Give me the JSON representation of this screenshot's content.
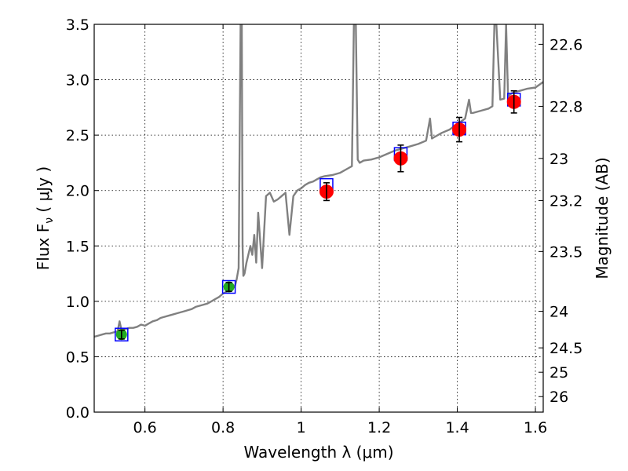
{
  "chart_data": {
    "type": "scatter",
    "xlabel": "Wavelength  λ (μm)",
    "ylabel_prefix": "Flux  F",
    "ylabel_sub": "ν",
    "ylabel_suffix": "  ( μJy )",
    "y2label": "Magnitude (AB)",
    "xlim": [
      0.47,
      1.62
    ],
    "ylim": [
      0.0,
      3.5
    ],
    "grid": true,
    "x_ticks": [
      {
        "value": 0.6,
        "label": "0.6"
      },
      {
        "value": 0.8,
        "label": "0.8"
      },
      {
        "value": 1.0,
        "label": "1"
      },
      {
        "value": 1.2,
        "label": "1.2"
      },
      {
        "value": 1.4,
        "label": "1.4"
      },
      {
        "value": 1.6,
        "label": "1.6"
      }
    ],
    "y_ticks": [
      {
        "value": 0.0,
        "label": "0.0"
      },
      {
        "value": 0.5,
        "label": "0.5"
      },
      {
        "value": 1.0,
        "label": "1.0"
      },
      {
        "value": 1.5,
        "label": "1.5"
      },
      {
        "value": 2.0,
        "label": "2.0"
      },
      {
        "value": 2.5,
        "label": "2.5"
      },
      {
        "value": 3.0,
        "label": "3.0"
      },
      {
        "value": 3.5,
        "label": "3.5"
      }
    ],
    "y2_ticks": [
      {
        "label": "22.6",
        "flux": 3.32
      },
      {
        "label": "22.8",
        "flux": 2.76
      },
      {
        "label": "23",
        "flux": 2.29
      },
      {
        "label": "23.2",
        "flux": 1.91
      },
      {
        "label": "23.5",
        "flux": 1.45
      },
      {
        "label": "24",
        "flux": 0.91
      },
      {
        "label": "24.5",
        "flux": 0.58
      },
      {
        "label": "25",
        "flux": 0.36
      },
      {
        "label": "26",
        "flux": 0.14
      }
    ],
    "colors": {
      "spectrum": "#808080",
      "observed": "#22aa22",
      "predicted": "#ff0000",
      "model_box": "#0000ff",
      "errorbar": "#000000"
    },
    "spectrum": {
      "x": [
        0.47,
        0.48,
        0.49,
        0.5,
        0.51,
        0.52,
        0.53,
        0.535,
        0.54,
        0.55,
        0.56,
        0.57,
        0.58,
        0.59,
        0.6,
        0.61,
        0.62,
        0.63,
        0.64,
        0.65,
        0.66,
        0.67,
        0.68,
        0.69,
        0.7,
        0.71,
        0.72,
        0.73,
        0.74,
        0.75,
        0.76,
        0.77,
        0.78,
        0.79,
        0.8,
        0.81,
        0.82,
        0.83,
        0.835,
        0.84,
        0.845,
        0.848,
        0.85,
        0.852,
        0.855,
        0.86,
        0.87,
        0.875,
        0.88,
        0.885,
        0.89,
        0.9,
        0.91,
        0.92,
        0.93,
        0.94,
        0.95,
        0.96,
        0.97,
        0.98,
        0.99,
        1.0,
        1.01,
        1.02,
        1.03,
        1.04,
        1.05,
        1.06,
        1.08,
        1.1,
        1.12,
        1.13,
        1.135,
        1.14,
        1.145,
        1.15,
        1.16,
        1.18,
        1.2,
        1.22,
        1.24,
        1.26,
        1.28,
        1.3,
        1.32,
        1.33,
        1.335,
        1.34,
        1.36,
        1.38,
        1.4,
        1.42,
        1.43,
        1.435,
        1.44,
        1.46,
        1.48,
        1.49,
        1.495,
        1.5,
        1.51,
        1.52,
        1.525,
        1.53,
        1.54,
        1.56,
        1.58,
        1.6,
        1.62
      ],
      "y": [
        0.68,
        0.69,
        0.7,
        0.71,
        0.71,
        0.72,
        0.73,
        0.82,
        0.74,
        0.75,
        0.76,
        0.76,
        0.77,
        0.79,
        0.78,
        0.8,
        0.82,
        0.83,
        0.85,
        0.86,
        0.87,
        0.88,
        0.89,
        0.9,
        0.91,
        0.92,
        0.93,
        0.95,
        0.96,
        0.97,
        0.98,
        1.0,
        1.02,
        1.04,
        1.07,
        1.09,
        1.11,
        1.13,
        1.2,
        1.3,
        3.5,
        3.5,
        1.5,
        1.23,
        1.25,
        1.35,
        1.5,
        1.42,
        1.6,
        1.35,
        1.8,
        1.3,
        1.95,
        1.98,
        1.9,
        1.92,
        1.95,
        1.98,
        1.6,
        1.95,
        2.0,
        2.02,
        2.05,
        2.07,
        2.08,
        2.1,
        2.12,
        2.13,
        2.14,
        2.16,
        2.2,
        2.22,
        3.5,
        3.5,
        2.28,
        2.25,
        2.27,
        2.28,
        2.3,
        2.33,
        2.36,
        2.38,
        2.4,
        2.42,
        2.45,
        2.65,
        2.47,
        2.48,
        2.52,
        2.55,
        2.6,
        2.65,
        2.82,
        2.7,
        2.7,
        2.72,
        2.74,
        2.76,
        3.5,
        3.5,
        2.82,
        2.83,
        3.5,
        2.85,
        2.88,
        2.9,
        2.92,
        2.93,
        2.98
      ]
    },
    "observed_points": [
      {
        "x": 0.54,
        "y": 0.7,
        "err": 0.04
      },
      {
        "x": 0.815,
        "y": 1.13,
        "err": 0.04
      }
    ],
    "predicted_points": [
      {
        "x": 1.065,
        "y": 1.99,
        "err": 0.08
      },
      {
        "x": 1.255,
        "y": 2.29,
        "err": 0.12
      },
      {
        "x": 1.405,
        "y": 2.55,
        "err": 0.11
      },
      {
        "x": 1.545,
        "y": 2.8,
        "err": 0.1
      }
    ],
    "model_boxes": [
      {
        "x": 0.54,
        "y": 0.7
      },
      {
        "x": 0.815,
        "y": 1.13
      },
      {
        "x": 1.065,
        "y": 2.05
      },
      {
        "x": 1.255,
        "y": 2.33
      },
      {
        "x": 1.405,
        "y": 2.56
      },
      {
        "x": 1.545,
        "y": 2.82
      }
    ]
  }
}
